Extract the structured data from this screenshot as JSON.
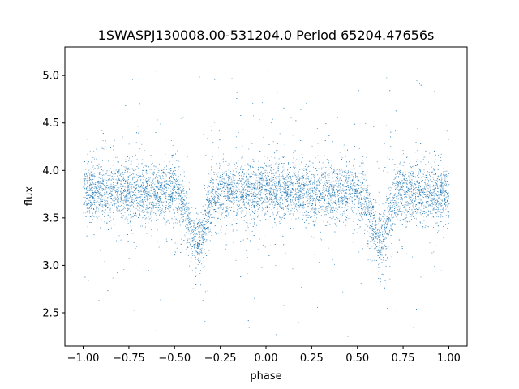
{
  "chart_data": {
    "type": "scatter",
    "title": "1SWASPJ130008.00-531204.0 Period 65204.47656s",
    "xlabel": "phase",
    "ylabel": "flux",
    "xlim": [
      -1.1,
      1.1
    ],
    "ylim": [
      2.15,
      5.3
    ],
    "x_ticks": [
      -1.0,
      -0.75,
      -0.5,
      -0.25,
      0.0,
      0.25,
      0.5,
      0.75,
      1.0
    ],
    "x_tick_labels": [
      "−1.00",
      "−0.75",
      "−0.50",
      "−0.25",
      "0.00",
      "0.25",
      "0.50",
      "0.75",
      "1.00"
    ],
    "y_ticks": [
      2.5,
      3.0,
      3.5,
      4.0,
      4.5,
      5.0
    ],
    "y_tick_labels": [
      "2.5",
      "3.0",
      "3.5",
      "4.0",
      "4.5",
      "5.0"
    ],
    "grid": false,
    "point_color": "#1f77b4",
    "phase_range": [
      -1.0,
      1.0
    ],
    "baseline_flux": 3.78,
    "eclipse_minima": [
      {
        "phase": -0.38,
        "flux": 3.25
      },
      {
        "phase": 0.62,
        "flux": 3.25
      }
    ],
    "typical_scatter": 0.15,
    "flux_extent": [
      2.25,
      5.15
    ]
  }
}
